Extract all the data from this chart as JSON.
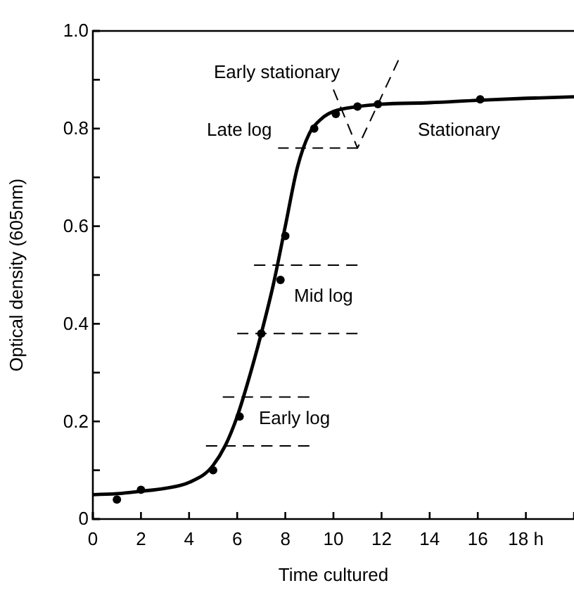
{
  "chart_data": {
    "type": "scatter",
    "xlabel": "Time cultured",
    "ylabel": "Optical density (605nm)",
    "xlim": [
      0,
      20
    ],
    "ylim": [
      0,
      1.0
    ],
    "xticks": [
      0,
      2,
      4,
      6,
      8,
      10,
      12,
      14,
      16,
      {
        "value": 18,
        "label": "18 h"
      }
    ],
    "yticks": [
      0,
      {
        "value": 0.1,
        "label": null
      },
      0.2,
      {
        "value": 0.3,
        "label": null
      },
      0.4,
      {
        "value": 0.5,
        "label": null
      },
      0.6,
      {
        "value": 0.7,
        "label": null
      },
      0.8,
      {
        "value": 0.9,
        "label": null
      },
      {
        "value": 1.0,
        "label": "1.0"
      }
    ],
    "series": [
      {
        "type": "line",
        "color": "#000000",
        "line_style": "solid",
        "marker": "none",
        "x": [
          0,
          1,
          2,
          3,
          4,
          5,
          5.5,
          6,
          6.5,
          7,
          7.5,
          8,
          8.5,
          9,
          9.5,
          10,
          11,
          12,
          14,
          16,
          18,
          20
        ],
        "values": [
          0.05,
          0.052,
          0.057,
          0.063,
          0.075,
          0.11,
          0.15,
          0.21,
          0.29,
          0.38,
          0.48,
          0.6,
          0.72,
          0.79,
          0.82,
          0.835,
          0.845,
          0.85,
          0.853,
          0.858,
          0.862,
          0.865
        ]
      },
      {
        "color": "#000000",
        "marker": "circle",
        "x": [
          1,
          2,
          5,
          6.1,
          7,
          7.8,
          8,
          9.2,
          10.1,
          11,
          11.85,
          16.1
        ],
        "values": [
          0.04,
          0.06,
          0.1,
          0.21,
          0.38,
          0.49,
          0.58,
          0.8,
          0.83,
          0.845,
          0.85,
          0.86
        ]
      },
      {
        "type": "line",
        "color": "#000000",
        "line_style": "dashed",
        "marker": "none",
        "x": [
          4.7,
          9
        ],
        "values": [
          0.15,
          0.15
        ]
      },
      {
        "type": "line",
        "color": "#000000",
        "line_style": "dashed",
        "marker": "none",
        "x": [
          5.4,
          9
        ],
        "values": [
          0.25,
          0.25
        ]
      },
      {
        "type": "line",
        "color": "#000000",
        "line_style": "dashed",
        "marker": "none",
        "x": [
          6,
          11
        ],
        "values": [
          0.38,
          0.38
        ]
      },
      {
        "type": "line",
        "color": "#000000",
        "line_style": "dashed",
        "marker": "none",
        "x": [
          6.7,
          11
        ],
        "values": [
          0.52,
          0.52
        ]
      },
      {
        "type": "line",
        "color": "#000000",
        "line_style": "dashed",
        "marker": "none",
        "x": [
          7.7,
          11
        ],
        "values": [
          0.76,
          0.76
        ]
      },
      {
        "type": "line",
        "color": "#000000",
        "line_style": "dashed",
        "marker": "none",
        "x": [
          10,
          11,
          12.7
        ],
        "values": [
          0.88,
          0.76,
          0.94
        ]
      }
    ],
    "annotations": [
      "Early stationary",
      "Late log",
      "Stationary",
      "Mid log",
      "Early log"
    ]
  }
}
